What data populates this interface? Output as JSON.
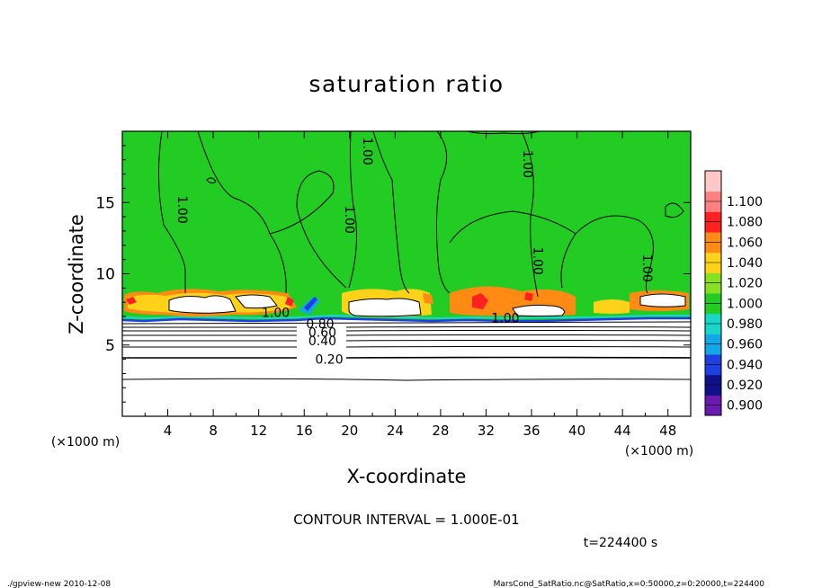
{
  "chart_data": {
    "type": "heatmap",
    "title": "saturation ratio",
    "xlabel": "X-coordinate",
    "ylabel": "Z-coordinate",
    "x_unit": "(×1000 m)",
    "y_unit": "(×1000 m)",
    "xlim": [
      0,
      50
    ],
    "ylim": [
      0,
      20
    ],
    "x_ticks": [
      4,
      8,
      12,
      16,
      20,
      24,
      28,
      32,
      36,
      40,
      44,
      48
    ],
    "y_ticks": [
      5,
      10,
      15
    ],
    "colorbar": {
      "levels": [
        0.9,
        0.92,
        0.94,
        0.96,
        0.98,
        1.0,
        1.02,
        1.04,
        1.06,
        1.08,
        1.1
      ],
      "labels": [
        "0.900",
        "0.920",
        "0.940",
        "0.960",
        "0.980",
        "1.000",
        "1.020",
        "1.040",
        "1.060",
        "1.080",
        "1.100"
      ],
      "colors": [
        "#6a1ab0",
        "#10108a",
        "#1f3fe0",
        "#12a8e8",
        "#18d7c8",
        "#22cc22",
        "#88e022",
        "#ffd21a",
        "#ff8a14",
        "#ff2020",
        "#ff8080",
        "#ffc8c8"
      ]
    },
    "contour_interval": "CONTOUR INTERVAL = 1.000E-01",
    "contour_labels": [
      {
        "text": "0.20",
        "x": 18.2,
        "z": 4.0
      },
      {
        "text": "0.40",
        "x": 17.6,
        "z": 5.3
      },
      {
        "text": "0.60",
        "x": 17.6,
        "z": 5.9
      },
      {
        "text": "0.80",
        "x": 17.4,
        "z": 6.5
      },
      {
        "text": "1.00",
        "x": 13.5,
        "z": 7.3
      },
      {
        "text": "1.00",
        "x": 33.7,
        "z": 6.9
      },
      {
        "text": "1.00",
        "x": 5.3,
        "z": 14.5
      },
      {
        "text": "1.00",
        "x": 20.0,
        "z": 13.8
      },
      {
        "text": "1.00",
        "x": 21.6,
        "z": 18.6
      },
      {
        "text": "1.00",
        "x": 35.7,
        "z": 17.7
      },
      {
        "text": "1.00",
        "x": 36.6,
        "z": 10.9
      },
      {
        "text": "1.00",
        "x": 46.2,
        "z": 10.4
      }
    ],
    "time": "t=224400 s"
  },
  "footer": {
    "left": "./gpview-new   2010-12-08",
    "right": "MarsCond_SatRatio.nc@SatRatio,x=0:50000,z=0:20000,t=224400"
  },
  "colors": {
    "field_green": "#22cc22",
    "cloud_free": "#ffffff",
    "contour": "#000000"
  }
}
